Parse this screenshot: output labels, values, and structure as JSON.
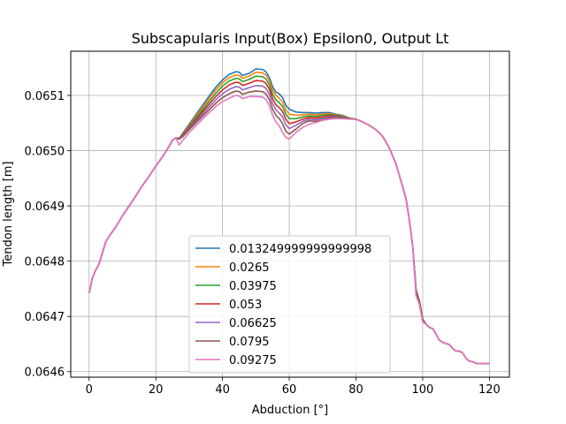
{
  "chart_data": {
    "type": "line",
    "title": "Subscapularis Input(Box) Epsilon0, Output Lt",
    "xlabel": "Abduction [°]",
    "ylabel": "Tendon length [m]",
    "xlim": [
      -5.5,
      126
    ],
    "ylim": [
      0.06459,
      0.06518
    ],
    "x_ticks": [
      0,
      20,
      40,
      60,
      80,
      100,
      120
    ],
    "y_ticks": [
      0.0646,
      0.0647,
      0.0648,
      0.0649,
      0.065,
      0.0651
    ],
    "grid": true,
    "legend_position": "lower center",
    "x": [
      0,
      1,
      2,
      3,
      4,
      5,
      6,
      8,
      10,
      12,
      14,
      16,
      18,
      20,
      22,
      24,
      25,
      26,
      27,
      28,
      30,
      32,
      34,
      36,
      38,
      40,
      42,
      44,
      45,
      46,
      48,
      50,
      52,
      53,
      54,
      55,
      56,
      57,
      58,
      59,
      60,
      62,
      64,
      66,
      68,
      70,
      72,
      74,
      76,
      78,
      80,
      82,
      84,
      86,
      88,
      90,
      92,
      94,
      95,
      96,
      97,
      98,
      99,
      100,
      101,
      102,
      103,
      104,
      105,
      106,
      107,
      108,
      109,
      110,
      111,
      112,
      113,
      114,
      115,
      116,
      117,
      118,
      119,
      120
    ],
    "series": [
      {
        "name": "0.013249999999999998",
        "color": "#1f77b4",
        "values": [
          0.064742,
          0.06477,
          0.064784,
          0.064795,
          0.064815,
          0.064835,
          0.064845,
          0.064862,
          0.064882,
          0.0649,
          0.064918,
          0.064937,
          0.064954,
          0.064972,
          0.064989,
          0.065008,
          0.065019,
          0.065023,
          0.065022,
          0.065031,
          0.065048,
          0.065065,
          0.065082,
          0.065099,
          0.065115,
          0.065128,
          0.065138,
          0.065143,
          0.065142,
          0.065136,
          0.06514,
          0.065148,
          0.065147,
          0.065143,
          0.065133,
          0.065116,
          0.065106,
          0.065103,
          0.065096,
          0.065082,
          0.065075,
          0.06507,
          0.065069,
          0.065069,
          0.065068,
          0.065069,
          0.065069,
          0.065066,
          0.065064,
          0.065059,
          0.065057,
          0.065052,
          0.065046,
          0.065038,
          0.065026,
          0.065005,
          0.064976,
          0.064935,
          0.064913,
          0.064875,
          0.064828,
          0.064748,
          0.064728,
          0.064695,
          0.064686,
          0.06468,
          0.064678,
          0.064668,
          0.064657,
          0.064653,
          0.064651,
          0.064649,
          0.064642,
          0.064637,
          0.064637,
          0.064634,
          0.064624,
          0.064619,
          0.064618,
          0.064615,
          0.064615,
          0.064615,
          0.064615,
          0.064615
        ]
      },
      {
        "name": "0.0265",
        "color": "#ff7f0e",
        "values": [
          0.064742,
          0.06477,
          0.064784,
          0.064795,
          0.064815,
          0.064835,
          0.064845,
          0.064862,
          0.064882,
          0.0649,
          0.064918,
          0.064937,
          0.064954,
          0.064972,
          0.064989,
          0.065008,
          0.065019,
          0.065023,
          0.065022,
          0.06503,
          0.065046,
          0.065062,
          0.065078,
          0.065094,
          0.06511,
          0.065123,
          0.065132,
          0.065137,
          0.065136,
          0.065131,
          0.065135,
          0.065142,
          0.065141,
          0.065137,
          0.065127,
          0.06511,
          0.0651,
          0.065095,
          0.065088,
          0.065074,
          0.065066,
          0.065064,
          0.065065,
          0.065066,
          0.065065,
          0.065066,
          0.065067,
          0.065065,
          0.065063,
          0.065059,
          0.065057,
          0.065052,
          0.065046,
          0.065038,
          0.065026,
          0.065005,
          0.064976,
          0.064935,
          0.064913,
          0.064875,
          0.064828,
          0.064748,
          0.064728,
          0.064695,
          0.064686,
          0.06468,
          0.064678,
          0.064668,
          0.064657,
          0.064653,
          0.064651,
          0.064649,
          0.064642,
          0.064637,
          0.064637,
          0.064634,
          0.064624,
          0.064619,
          0.064618,
          0.064615,
          0.064615,
          0.064615,
          0.064615,
          0.064615
        ]
      },
      {
        "name": "0.03975",
        "color": "#2ca02c",
        "values": [
          0.064742,
          0.06477,
          0.064784,
          0.064795,
          0.064815,
          0.064835,
          0.064845,
          0.064862,
          0.064882,
          0.0649,
          0.064918,
          0.064937,
          0.064954,
          0.064972,
          0.064989,
          0.065008,
          0.065019,
          0.065023,
          0.065022,
          0.065029,
          0.065044,
          0.065059,
          0.065074,
          0.065089,
          0.065104,
          0.065117,
          0.065126,
          0.065131,
          0.06513,
          0.065125,
          0.065129,
          0.065135,
          0.065134,
          0.06513,
          0.06512,
          0.065102,
          0.065092,
          0.065087,
          0.06508,
          0.065066,
          0.065058,
          0.065058,
          0.065061,
          0.065063,
          0.065062,
          0.065064,
          0.065065,
          0.065064,
          0.065062,
          0.065059,
          0.065057,
          0.065052,
          0.065046,
          0.065038,
          0.065026,
          0.065005,
          0.064976,
          0.064935,
          0.064913,
          0.064875,
          0.064828,
          0.064748,
          0.064728,
          0.064695,
          0.064686,
          0.06468,
          0.064678,
          0.064668,
          0.064657,
          0.064653,
          0.064651,
          0.064649,
          0.064642,
          0.064637,
          0.064637,
          0.064634,
          0.064624,
          0.064619,
          0.064618,
          0.064615,
          0.064615,
          0.064615,
          0.064615,
          0.064615
        ]
      },
      {
        "name": "0.053",
        "color": "#d62728",
        "values": [
          0.064742,
          0.06477,
          0.064784,
          0.064795,
          0.064815,
          0.064835,
          0.064845,
          0.064862,
          0.064882,
          0.0649,
          0.064918,
          0.064937,
          0.064954,
          0.064972,
          0.064989,
          0.065008,
          0.065019,
          0.065023,
          0.065022,
          0.065028,
          0.065042,
          0.065056,
          0.06507,
          0.065084,
          0.065098,
          0.06511,
          0.065119,
          0.065124,
          0.065123,
          0.065118,
          0.065122,
          0.065127,
          0.065126,
          0.065122,
          0.065112,
          0.065094,
          0.065083,
          0.065078,
          0.065071,
          0.065057,
          0.065049,
          0.065052,
          0.065057,
          0.06506,
          0.065059,
          0.065061,
          0.065063,
          0.065063,
          0.065061,
          0.065058,
          0.065057,
          0.065052,
          0.065046,
          0.065038,
          0.065026,
          0.065005,
          0.064976,
          0.064935,
          0.064913,
          0.064875,
          0.064828,
          0.064748,
          0.064728,
          0.064695,
          0.064686,
          0.06468,
          0.064678,
          0.064668,
          0.064657,
          0.064653,
          0.064651,
          0.064649,
          0.064642,
          0.064637,
          0.064637,
          0.064634,
          0.064624,
          0.064619,
          0.064618,
          0.064615,
          0.064615,
          0.064615,
          0.064615,
          0.064615
        ]
      },
      {
        "name": "0.06625",
        "color": "#9467bd",
        "values": [
          0.064742,
          0.06477,
          0.064784,
          0.064795,
          0.064815,
          0.064835,
          0.064845,
          0.064862,
          0.064882,
          0.0649,
          0.064918,
          0.064937,
          0.064954,
          0.064972,
          0.064989,
          0.065008,
          0.065019,
          0.065023,
          0.065022,
          0.065027,
          0.06504,
          0.065053,
          0.065066,
          0.065079,
          0.065092,
          0.065103,
          0.065111,
          0.065116,
          0.065115,
          0.06511,
          0.065114,
          0.065118,
          0.065117,
          0.065113,
          0.065103,
          0.065085,
          0.065074,
          0.065068,
          0.065061,
          0.065047,
          0.06504,
          0.065046,
          0.065053,
          0.065057,
          0.065056,
          0.065059,
          0.065061,
          0.065062,
          0.065061,
          0.065058,
          0.065057,
          0.065052,
          0.065046,
          0.065038,
          0.065026,
          0.065005,
          0.064976,
          0.064935,
          0.064913,
          0.064875,
          0.064828,
          0.064748,
          0.064728,
          0.064695,
          0.064686,
          0.06468,
          0.064678,
          0.064668,
          0.064657,
          0.064653,
          0.064651,
          0.064649,
          0.064642,
          0.064637,
          0.064637,
          0.064634,
          0.064624,
          0.064619,
          0.064618,
          0.064615,
          0.064615,
          0.064615,
          0.064615,
          0.064615
        ]
      },
      {
        "name": "0.0795",
        "color": "#8c564b",
        "values": [
          0.064742,
          0.06477,
          0.064784,
          0.064795,
          0.064815,
          0.064835,
          0.064845,
          0.064862,
          0.064882,
          0.0649,
          0.064918,
          0.064937,
          0.064954,
          0.064972,
          0.064989,
          0.065008,
          0.065019,
          0.065023,
          0.065021,
          0.065025,
          0.065038,
          0.06505,
          0.065062,
          0.065074,
          0.065086,
          0.065096,
          0.065103,
          0.065108,
          0.065107,
          0.065102,
          0.065106,
          0.065108,
          0.065107,
          0.065103,
          0.065093,
          0.065075,
          0.065064,
          0.065058,
          0.065049,
          0.065035,
          0.06503,
          0.065039,
          0.065049,
          0.065054,
          0.065053,
          0.065056,
          0.065059,
          0.065061,
          0.06506,
          0.065058,
          0.065057,
          0.065052,
          0.065046,
          0.065038,
          0.065026,
          0.065005,
          0.064976,
          0.064935,
          0.064913,
          0.064875,
          0.064828,
          0.064748,
          0.064728,
          0.064695,
          0.064686,
          0.06468,
          0.064678,
          0.064668,
          0.064657,
          0.064653,
          0.064651,
          0.064649,
          0.064642,
          0.064637,
          0.064637,
          0.064634,
          0.064624,
          0.064619,
          0.064618,
          0.064615,
          0.064615,
          0.064615,
          0.064615,
          0.064615
        ]
      },
      {
        "name": "0.09275",
        "color": "#e377c2",
        "values": [
          0.064742,
          0.06477,
          0.064784,
          0.064795,
          0.064815,
          0.064835,
          0.064845,
          0.064862,
          0.064882,
          0.0649,
          0.064918,
          0.064937,
          0.064954,
          0.064972,
          0.064989,
          0.065008,
          0.065019,
          0.065023,
          0.06501,
          0.065018,
          0.065033,
          0.065045,
          0.065057,
          0.065069,
          0.06508,
          0.065089,
          0.065095,
          0.0651,
          0.065099,
          0.065094,
          0.065098,
          0.065098,
          0.065097,
          0.065093,
          0.065082,
          0.065064,
          0.065052,
          0.065045,
          0.065033,
          0.065024,
          0.065021,
          0.065033,
          0.065042,
          0.065048,
          0.065051,
          0.065055,
          0.065057,
          0.065058,
          0.065058,
          0.065057,
          0.065057,
          0.065052,
          0.065046,
          0.065038,
          0.065026,
          0.065005,
          0.064976,
          0.064935,
          0.064913,
          0.064875,
          0.064828,
          0.064738,
          0.064722,
          0.06469,
          0.064686,
          0.06468,
          0.064678,
          0.064668,
          0.064657,
          0.064653,
          0.064651,
          0.064649,
          0.064642,
          0.064637,
          0.064637,
          0.064634,
          0.064624,
          0.064619,
          0.064618,
          0.064615,
          0.064615,
          0.064615,
          0.064615,
          0.064615
        ]
      }
    ]
  }
}
